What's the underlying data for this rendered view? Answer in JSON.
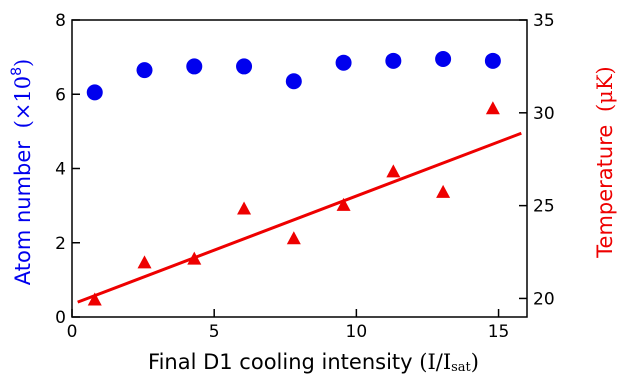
{
  "chart_data": {
    "type": "scatter",
    "x": [
      0.8,
      2.55,
      4.3,
      6.05,
      7.8,
      9.55,
      11.3,
      13.05,
      14.8
    ],
    "x_axis": {
      "label_main": "Final D1 cooling intensity",
      "label_paren_open": "(I/I",
      "label_sub": "sat",
      "label_paren_close": ")",
      "range": [
        0,
        16
      ],
      "ticks": [
        0,
        5,
        10,
        15
      ],
      "tick_labels": [
        "0",
        "5",
        "10",
        "15"
      ]
    },
    "y_left_axis": {
      "label_main": "Atom number",
      "label_unit": "(×10",
      "label_sup": "8",
      "label_close": ")",
      "range": [
        0,
        8
      ],
      "ticks": [
        0,
        2,
        4,
        6,
        8
      ],
      "tick_labels": [
        "0",
        "2",
        "4",
        "6",
        "8"
      ],
      "color": "#0000ee"
    },
    "y_right_axis": {
      "label_main": "Temperature",
      "label_unit": "(μK)",
      "range": [
        19,
        35
      ],
      "ticks": [
        20,
        25,
        30,
        35
      ],
      "tick_labels": [
        "20",
        "25",
        "30",
        "35"
      ],
      "color": "#ee0000"
    },
    "series": [
      {
        "axis": "left",
        "marker": "circle",
        "color": "#0000ee",
        "values": [
          6.05,
          6.65,
          6.75,
          6.75,
          6.35,
          6.85,
          6.9,
          6.95,
          6.9
        ]
      },
      {
        "axis": "right",
        "marker": "triangle",
        "color": "#ee0000",
        "values": [
          19.9,
          21.9,
          22.1,
          24.8,
          23.2,
          25.0,
          26.8,
          25.7,
          30.2
        ]
      }
    ],
    "fit_line": {
      "axis": "right",
      "color": "#ee0000",
      "x": [
        0.2,
        15.8
      ],
      "y": [
        19.8,
        28.9
      ]
    },
    "grid": false,
    "legend": "none"
  }
}
